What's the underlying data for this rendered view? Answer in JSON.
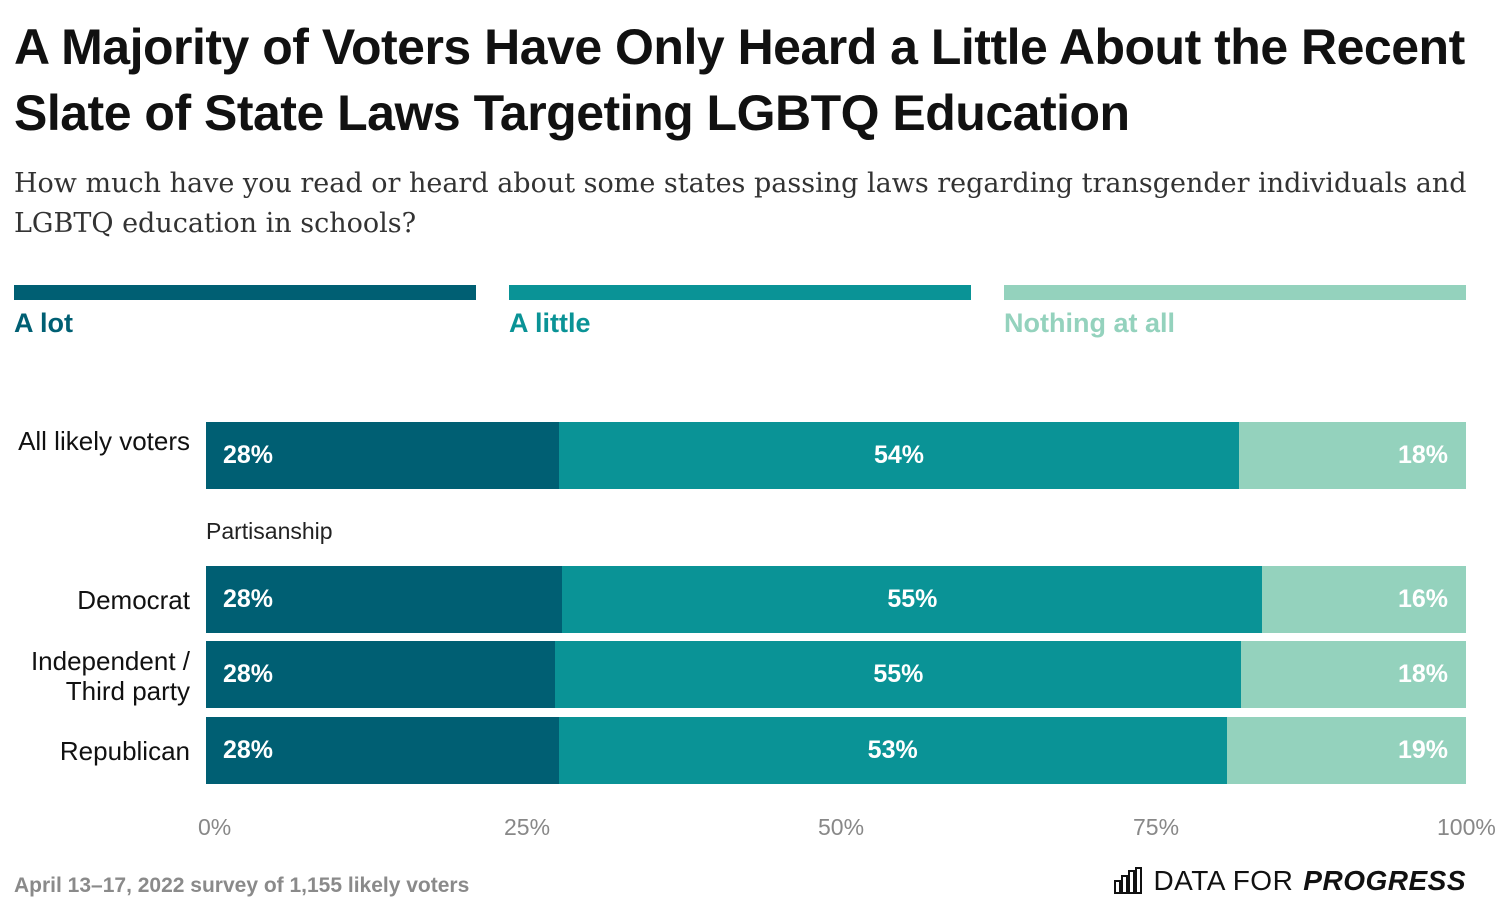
{
  "title": "A Majority of Voters Have Only Heard a Little About the Recent Slate of State Laws Targeting LGBTQ Education",
  "subtitle": "How much have you read or heard about some states passing laws regarding transgender individuals and LGBTQ education in schools?",
  "colors": {
    "a_lot": "#005f73",
    "a_little": "#0a9396",
    "nothing": "#94d2bd",
    "legend_nothing_text": "#94d2bd"
  },
  "legend": [
    "A lot",
    "A little",
    "Nothing at all"
  ],
  "group_label": "Partisanship",
  "footer": {
    "note": "April 13–17, 2022 survey of 1,155 likely voters",
    "brand_prefix": "DATA FOR",
    "brand_strong": "PROGRESS",
    "brand_icon": "bar-chart-logo-icon"
  },
  "chart_data": {
    "type": "bar",
    "orientation": "horizontal",
    "stacked": true,
    "categories": [
      "All likely voters",
      "Democrat",
      "Independent / Third party",
      "Republican"
    ],
    "series": [
      {
        "name": "A lot",
        "values": [
          28,
          28,
          28,
          28
        ],
        "labels": [
          "28%",
          "28%",
          "28%",
          "28%"
        ]
      },
      {
        "name": "A little",
        "values": [
          54,
          55,
          55,
          53
        ],
        "labels": [
          "54%",
          "55%",
          "55%",
          "53%"
        ]
      },
      {
        "name": "Nothing at all",
        "values": [
          18,
          16,
          18,
          19
        ],
        "labels": [
          "18%",
          "16%",
          "18%",
          "19%"
        ]
      }
    ],
    "xlim": [
      0,
      100
    ],
    "xticks": [
      "0%",
      "25%",
      "50%",
      "75%",
      "100%"
    ],
    "legend_position": "top"
  }
}
